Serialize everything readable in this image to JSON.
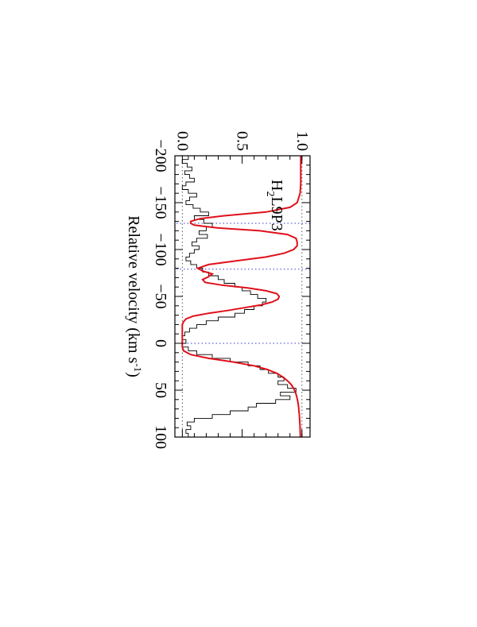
{
  "chart_data": {
    "type": "line",
    "orientation": "rotated-90-clockwise",
    "xlabel": "Relative velocity (km s",
    "xlabel_sup": "-1",
    "xlabel_end": ")",
    "xlim": [
      -200,
      100
    ],
    "ylim": [
      0.0,
      1.0
    ],
    "xticks": [
      -200,
      -150,
      -100,
      -50,
      0,
      50,
      100
    ],
    "xtick_labels": [
      "−200",
      "−150",
      "−100",
      "−50",
      "0",
      "50",
      "100"
    ],
    "yticks": [
      0.0,
      0.5,
      1.0
    ],
    "ytick_labels": [
      "0.0",
      "0.5",
      "1.0"
    ],
    "annotation": {
      "main": "H",
      "sub": "2",
      "rest": "L9P3"
    },
    "reference_lines": {
      "continuum": 1.0,
      "zero": 0.0,
      "component_velocities": [
        -128,
        -79,
        0
      ]
    },
    "colors": {
      "model": "#e0101a",
      "data": "#000000",
      "ref_h": "#555555",
      "ref_v": "#3a3ad8"
    },
    "series": [
      {
        "style": "step",
        "x": [
          -200,
          -196,
          -192,
          -188,
          -184,
          -180,
          -176,
          -172,
          -168,
          -164,
          -160,
          -156,
          -152,
          -148,
          -144,
          -140,
          -136,
          -132,
          -128,
          -124,
          -120,
          -116,
          -112,
          -108,
          -104,
          -100,
          -96,
          -92,
          -88,
          -84,
          -80,
          -76,
          -72,
          -68,
          -64,
          -60,
          -56,
          -52,
          -48,
          -44,
          -40,
          -36,
          -32,
          -28,
          -24,
          -20,
          -16,
          -12,
          -8,
          -4,
          0,
          4,
          8,
          12,
          16,
          20,
          24,
          28,
          32,
          36,
          40,
          44,
          48,
          52,
          56,
          60,
          64,
          68,
          72,
          76,
          80,
          84,
          88,
          92,
          96,
          100
        ],
        "y": [
          0.05,
          0.0,
          0.04,
          0.08,
          0.02,
          0.06,
          0.1,
          0.03,
          0.0,
          0.05,
          0.12,
          0.06,
          0.03,
          0.09,
          0.15,
          0.22,
          0.1,
          0.18,
          0.25,
          0.2,
          0.14,
          0.21,
          0.12,
          0.08,
          0.14,
          0.1,
          0.06,
          0.03,
          0.07,
          0.12,
          0.17,
          0.22,
          0.3,
          0.35,
          0.44,
          0.5,
          0.57,
          0.63,
          0.7,
          0.67,
          0.6,
          0.52,
          0.44,
          0.3,
          0.2,
          0.12,
          0.06,
          0.02,
          0.0,
          0.03,
          0.0,
          0.05,
          0.12,
          0.25,
          0.4,
          0.55,
          0.65,
          0.72,
          0.8,
          0.85,
          0.8,
          0.88,
          0.95,
          0.82,
          0.9,
          0.78,
          0.62,
          0.55,
          0.4,
          0.25,
          0.1,
          0.04,
          0.07,
          0.03,
          0.05,
          0.02
        ]
      },
      {
        "style": "line",
        "x": [
          -200,
          -190,
          -180,
          -170,
          -160,
          -150,
          -145,
          -140,
          -136,
          -133,
          -130,
          -128,
          -126,
          -123,
          -120,
          -116,
          -112,
          -108,
          -104,
          -100,
          -96,
          -92,
          -88,
          -84,
          -80,
          -77,
          -74,
          -71,
          -68,
          -65,
          -62,
          -59,
          -56,
          -53,
          -50,
          -47,
          -44,
          -41,
          -38,
          -35,
          -32,
          -29,
          -26,
          -23,
          -20,
          -17,
          -14,
          -11,
          -8,
          -5,
          -2,
          0,
          4,
          8,
          12,
          16,
          20,
          24,
          28,
          32,
          36,
          40,
          44,
          48,
          52,
          56,
          60,
          64,
          68,
          72,
          76,
          80,
          84,
          88,
          92,
          96,
          100
        ],
        "y": [
          0.99,
          0.99,
          0.99,
          0.99,
          0.985,
          0.96,
          0.9,
          0.7,
          0.35,
          0.15,
          0.07,
          0.07,
          0.1,
          0.3,
          0.65,
          0.88,
          0.95,
          0.96,
          0.96,
          0.93,
          0.85,
          0.7,
          0.45,
          0.22,
          0.13,
          0.17,
          0.25,
          0.22,
          0.17,
          0.19,
          0.33,
          0.55,
          0.7,
          0.79,
          0.81,
          0.8,
          0.75,
          0.66,
          0.52,
          0.38,
          0.22,
          0.09,
          0.03,
          0.01,
          0.0,
          0.0,
          0.0,
          0.0,
          0.0,
          0.0,
          0.0,
          0.0,
          0.0,
          0.01,
          0.07,
          0.22,
          0.43,
          0.6,
          0.71,
          0.79,
          0.84,
          0.88,
          0.91,
          0.93,
          0.945,
          0.955,
          0.962,
          0.968,
          0.972,
          0.975,
          0.978,
          0.98,
          0.982,
          0.984,
          0.985,
          0.986,
          0.987
        ]
      }
    ]
  }
}
